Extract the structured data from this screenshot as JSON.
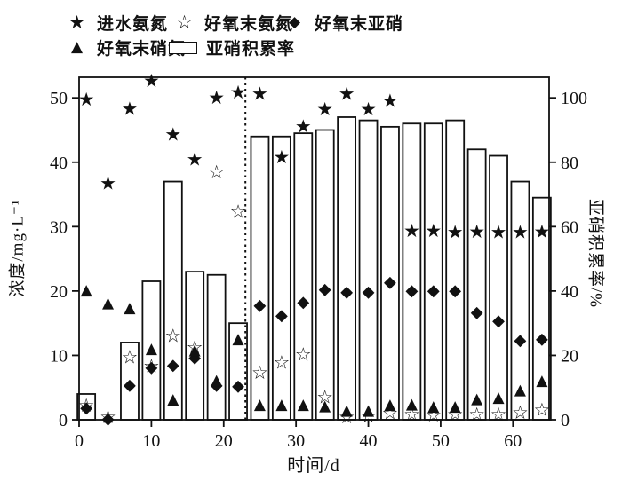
{
  "legend": {
    "items": [
      {
        "label": "进水氨氮",
        "marker": "filled-star"
      },
      {
        "label": "好氧末氨氮",
        "marker": "open-star"
      },
      {
        "label": "好氧末亚硝",
        "marker": "filled-diamond"
      },
      {
        "label": "好氧末硝氮",
        "marker": "filled-triangle"
      },
      {
        "label": "亚硝积累率",
        "marker": "open-bar"
      }
    ]
  },
  "axes": {
    "x_label": "时间/d",
    "y_left_label": "浓度/mg·L⁻¹",
    "y_right_label": "亚硝积累率/%",
    "x_ticks": [
      0,
      10,
      20,
      30,
      40,
      50,
      60
    ],
    "y_left_ticks": [
      0,
      10,
      20,
      30,
      40,
      50
    ],
    "y_right_ticks": [
      0,
      20,
      40,
      60,
      80,
      100
    ]
  },
  "chart_data": {
    "type": "combo-bar-scatter",
    "x_axis": {
      "label": "时间/d",
      "range": [
        0,
        65
      ]
    },
    "y_left": {
      "label": "浓度/mg·L⁻¹",
      "range": [
        0,
        53.2
      ]
    },
    "y_right": {
      "label": "亚硝积累率/%",
      "range": [
        0,
        106.4
      ]
    },
    "grid": false,
    "x": [
      1,
      4,
      7,
      10,
      13,
      16,
      19,
      22,
      25,
      28,
      31,
      34,
      37,
      40,
      43,
      46,
      49,
      52,
      55,
      58,
      61,
      64
    ],
    "bars": {
      "name": "亚硝积累率",
      "axis": "right",
      "unit": "%",
      "values": [
        8,
        0,
        24,
        43,
        74,
        46,
        45,
        30,
        88,
        88,
        89,
        90,
        94,
        93,
        91,
        92,
        92,
        93,
        84,
        82,
        74,
        69
      ]
    },
    "series": [
      {
        "name": "进水氨氮",
        "marker": "filled-star",
        "axis": "left",
        "values": [
          49.8,
          36.8,
          48.4,
          52.7,
          44.4,
          40.5,
          50.1,
          50.9,
          50.7,
          40.9,
          45.6,
          48.3,
          50.7,
          48.3,
          49.6,
          29.4,
          29.4,
          29.2,
          29.3,
          29.2,
          29.2,
          29.3
        ]
      },
      {
        "name": "好氧末氨氮",
        "marker": "open-star",
        "axis": "left",
        "values": [
          2.3,
          0.5,
          9.8,
          8.4,
          13.1,
          11.3,
          38.5,
          32.4,
          7.4,
          9.0,
          10.2,
          3.6,
          0.5,
          0.6,
          1.1,
          0.9,
          0.8,
          0.9,
          0.9,
          0.9,
          1.2,
          1.6
        ]
      },
      {
        "name": "好氧末亚硝",
        "marker": "filled-diamond",
        "axis": "left",
        "values": [
          2.0,
          0.3,
          5.5,
          8.3,
          8.6,
          9.8,
          5.5,
          5.4,
          17.9,
          16.3,
          18.4,
          20.4,
          20.0,
          20.0,
          21.5,
          20.2,
          20.2,
          20.2,
          16.8,
          15.5,
          12.5,
          12.7
        ]
      },
      {
        "name": "好氧末硝氮",
        "marker": "filled-triangle",
        "axis": "left",
        "values": [
          20.3,
          18.3,
          17.5,
          11.2,
          3.3,
          11.0,
          6.3,
          12.7,
          2.5,
          2.5,
          2.5,
          2.3,
          1.6,
          1.6,
          2.5,
          2.6,
          2.2,
          2.2,
          3.4,
          3.6,
          4.8,
          6.2
        ]
      }
    ],
    "annotations": {
      "dashed_vline_x_day": 23
    }
  }
}
